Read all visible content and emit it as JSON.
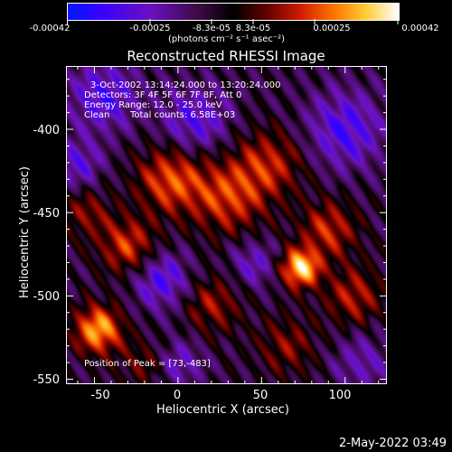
{
  "chart_data": {
    "type": "heatmap",
    "title": "Reconstructed RHESSI Image",
    "xlabel": "Heliocentric X (arcsec)",
    "ylabel": "Heliocentric Y (arcsec)",
    "xlim": [
      -67,
      125
    ],
    "ylim": [
      -553,
      -362
    ],
    "x_ticks": [
      "-50",
      "0",
      "50",
      "100"
    ],
    "x_tick_values": [
      -50,
      0,
      50,
      100
    ],
    "y_ticks": [
      "-400",
      "-450",
      "-500",
      "-550"
    ],
    "y_tick_values": [
      -400,
      -450,
      -500,
      -550
    ],
    "colorbar": {
      "labels": [
        "-0.00042",
        "-0.00025",
        "-8.3e-05",
        "8.3e-05",
        "0.00025",
        "0.00042"
      ],
      "values": [
        -0.00042,
        -0.00025,
        -8.3e-05,
        8.3e-05,
        0.00025,
        0.00042
      ],
      "units": "(photons cm⁻² s⁻¹ asec⁻²)",
      "colors": [
        "#0000ff",
        "#6a0dad",
        "#1a0010",
        "#000000",
        "#8b0000",
        "#ff3300",
        "#ff9900",
        "#ffff66",
        "#ffffff"
      ]
    },
    "annotations": {
      "time_range": "3-Oct-2002 13:14:24.000 to 13:20:24.000",
      "detectors": "Detectors: 3F 4F 5F 6F 7F 8F, Att 0",
      "energy": "Energy Range: 12.0 - 25.0 keV",
      "method": "Clean",
      "counts": "Total counts: 6.58E+03",
      "peak": "Position of Peak = [73,-483]"
    },
    "peak": {
      "x": 73,
      "y": -483
    }
  },
  "footer": {
    "timestamp": "2-May-2022 03:49"
  }
}
